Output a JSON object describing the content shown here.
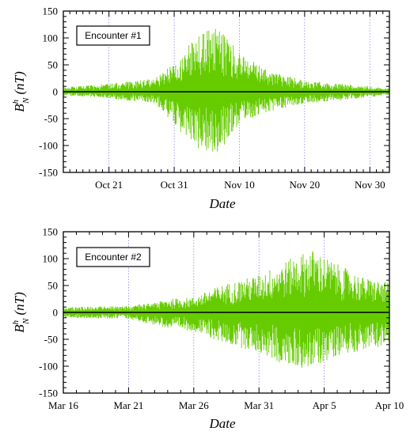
{
  "chart_data": [
    {
      "type": "line",
      "legend_label": "Encounter #1",
      "xlabel": "Date",
      "ylabel": {
        "main": "B",
        "superscript": "h",
        "subscript": "N",
        "unit": "(nT)"
      },
      "ylim": [
        -150,
        150
      ],
      "yticks": [
        -150,
        -100,
        -50,
        0,
        50,
        100,
        150
      ],
      "xlim": [
        "2018-10-14",
        "2018-12-03"
      ],
      "xticks": [
        {
          "date": "2018-10-21",
          "label": "Oct 21"
        },
        {
          "date": "2018-10-31",
          "label": "Oct 31"
        },
        {
          "date": "2018-11-10",
          "label": "Nov 10"
        },
        {
          "date": "2018-11-20",
          "label": "Nov 20"
        },
        {
          "date": "2018-11-30",
          "label": "Nov 30"
        }
      ],
      "grid": "vertical-dotted",
      "series": [
        {
          "color": "#66cc00",
          "envelope": [
            {
              "date": "2018-10-14",
              "upper": 8,
              "lower": -7
            },
            {
              "date": "2018-10-21",
              "upper": 15,
              "lower": -12
            },
            {
              "date": "2018-10-28",
              "upper": 25,
              "lower": -22
            },
            {
              "date": "2018-10-31",
              "upper": 55,
              "lower": -60
            },
            {
              "date": "2018-11-02",
              "upper": 85,
              "lower": -90
            },
            {
              "date": "2018-11-04",
              "upper": 105,
              "lower": -110
            },
            {
              "date": "2018-11-06",
              "upper": 120,
              "lower": -118
            },
            {
              "date": "2018-11-08",
              "upper": 110,
              "lower": -95
            },
            {
              "date": "2018-11-10",
              "upper": 70,
              "lower": -60
            },
            {
              "date": "2018-11-15",
              "upper": 40,
              "lower": -35
            },
            {
              "date": "2018-11-20",
              "upper": 20,
              "lower": -22
            },
            {
              "date": "2018-11-26",
              "upper": 15,
              "lower": -15
            },
            {
              "date": "2018-12-03",
              "upper": 6,
              "lower": -6
            }
          ]
        }
      ]
    },
    {
      "type": "line",
      "legend_label": "Encounter #2",
      "xlabel": "Date",
      "ylabel": {
        "main": "B",
        "superscript": "h",
        "subscript": "N",
        "unit": "(nT)"
      },
      "ylim": [
        -150,
        150
      ],
      "yticks": [
        -150,
        -100,
        -50,
        0,
        50,
        100,
        150
      ],
      "xlim": [
        "2019-03-16",
        "2019-04-10"
      ],
      "xticks": [
        {
          "date": "2019-03-16",
          "label": "Mar 16"
        },
        {
          "date": "2019-03-21",
          "label": "Mar 21"
        },
        {
          "date": "2019-03-26",
          "label": "Mar 26"
        },
        {
          "date": "2019-03-31",
          "label": "Mar 31"
        },
        {
          "date": "2019-04-05",
          "label": "Apr 5"
        },
        {
          "date": "2019-04-10",
          "label": "Apr 10"
        }
      ],
      "grid": "vertical-dotted",
      "series": [
        {
          "color": "#66cc00",
          "envelope": [
            {
              "date": "2019-03-16",
              "upper": 10,
              "lower": -10
            },
            {
              "date": "2019-03-21",
              "upper": 12,
              "lower": -12
            },
            {
              "date": "2019-03-24",
              "upper": 25,
              "lower": -30
            },
            {
              "date": "2019-03-26",
              "upper": 28,
              "lower": -35
            },
            {
              "date": "2019-03-28",
              "upper": 50,
              "lower": -55
            },
            {
              "date": "2019-03-31",
              "upper": 70,
              "lower": -75
            },
            {
              "date": "2019-04-02",
              "upper": 95,
              "lower": -100
            },
            {
              "date": "2019-04-04",
              "upper": 118,
              "lower": -105
            },
            {
              "date": "2019-04-06",
              "upper": 90,
              "lower": -80
            },
            {
              "date": "2019-04-08",
              "upper": 65,
              "lower": -70
            },
            {
              "date": "2019-04-10",
              "upper": 55,
              "lower": -60
            }
          ]
        }
      ]
    }
  ]
}
